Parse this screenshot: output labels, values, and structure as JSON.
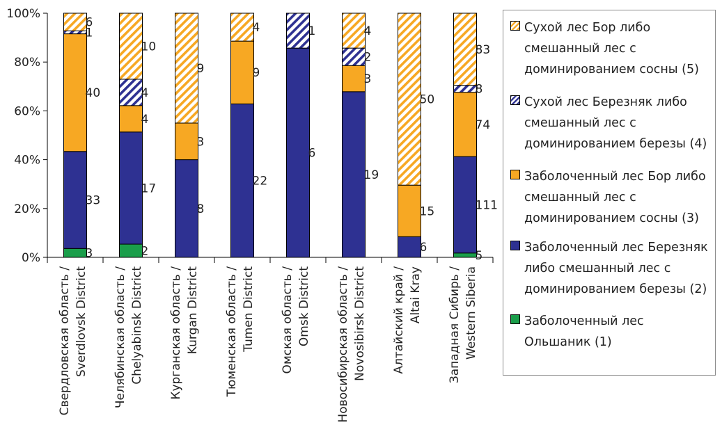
{
  "chart_data": {
    "type": "bar",
    "stacked": "percent",
    "ylim": [
      0,
      100
    ],
    "y_ticks": [
      "0%",
      "20%",
      "40%",
      "60%",
      "80%",
      "100%"
    ],
    "categories": [
      [
        "Свердловская область /",
        "Sverdlovsk  District"
      ],
      [
        "Челябинская область /",
        "Chelyabinsk  District"
      ],
      [
        "Курганская область /",
        "Kurgan District"
      ],
      [
        "Тюменская область /",
        "Tumen District"
      ],
      [
        "Омская область /",
        "Omsk District"
      ],
      [
        "Новосибирская область /",
        "Novosibirsk  District"
      ],
      [
        "Алтайский край /",
        "Altai Kray"
      ],
      [
        "Западная Сибирь /",
        "Western Siberia"
      ]
    ],
    "series": [
      {
        "name": "Заболоченный лес Ольшаник (1)",
        "color": "#1a9e4a",
        "pattern": "solid",
        "values": [
          3,
          2,
          0,
          0,
          0,
          0,
          0,
          5
        ],
        "labels": [
          "3",
          "2",
          "",
          "",
          "",
          "",
          "",
          "5"
        ]
      },
      {
        "name": "Заболоченный лес Березняк либо смешанный лес с доминированием березы (2)",
        "color": "#2e3192",
        "pattern": "solid",
        "values": [
          33,
          17,
          8,
          22,
          6,
          19,
          6,
          111
        ],
        "labels": [
          "33",
          "17",
          "8",
          "22",
          "6",
          "19",
          "6",
          "111"
        ]
      },
      {
        "name": "Заболоченный лес Бор либо смешанный лес с доминированием сосны (3)",
        "color": "#f7a823",
        "pattern": "solid",
        "values": [
          40,
          4,
          3,
          9,
          0,
          3,
          15,
          74
        ],
        "labels": [
          "40",
          "4",
          "3",
          "9",
          "",
          "3",
          "15",
          "74"
        ]
      },
      {
        "name": "Сухой лес Березняк либо смешанный лес с доминированием березы (4)",
        "color": "#2e3192",
        "pattern": "hatch",
        "values": [
          1,
          4,
          0,
          0,
          1,
          2,
          0,
          8
        ],
        "labels": [
          "1",
          "4",
          "",
          "",
          "1",
          "2",
          "",
          "8"
        ]
      },
      {
        "name": "Сухой лес Бор либо смешанный лес с доминированием сосны (5)",
        "color": "#f7a823",
        "pattern": "hatch",
        "values": [
          6,
          10,
          9,
          4,
          0,
          4,
          50,
          83
        ],
        "labels": [
          "6",
          "10",
          "9",
          "4",
          "",
          "4",
          "50",
          "83"
        ]
      }
    ],
    "legend_position": "right",
    "grid": false
  }
}
